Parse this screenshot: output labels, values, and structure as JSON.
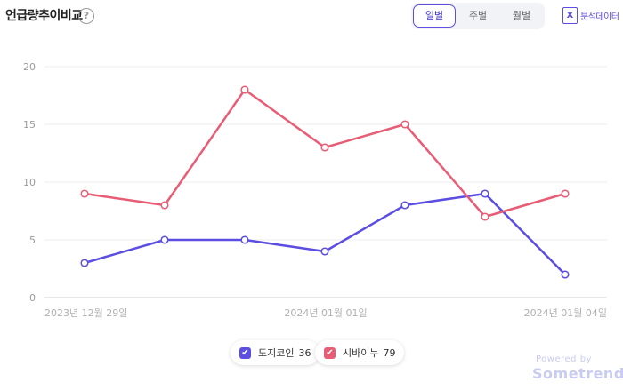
{
  "header": {
    "title": "언급량추이비교",
    "help_icon": "?",
    "tabs": [
      "일별",
      "주별",
      "월별"
    ],
    "active_tab": "일별",
    "export_label": "분석데이터",
    "export_icon": "X"
  },
  "chart_data": {
    "type": "line",
    "x": [
      "2023-12-29",
      "2023-12-30",
      "2023-12-31",
      "2024-01-01",
      "2024-01-02",
      "2024-01-03",
      "2024-01-04"
    ],
    "x_tick_labels": [
      "2023년 12월 29일",
      "2024년 01월 01일",
      "2024년 01월 04일"
    ],
    "y_ticks": [
      "0",
      "5",
      "10",
      "15",
      "20"
    ],
    "ylim": [
      0,
      20
    ],
    "grid": true,
    "legend_position": "bottom-center",
    "series": [
      {
        "name": "도지코인",
        "total": "36",
        "color": "#5b4ee0",
        "values": [
          3,
          5,
          5,
          4,
          8,
          9,
          2
        ]
      },
      {
        "name": "시바이누",
        "total": "79",
        "color": "#e85d75",
        "values": [
          9,
          8,
          18,
          13,
          15,
          7,
          9
        ]
      }
    ]
  },
  "footer": {
    "powered_by": "Powered by",
    "brand": "Sometrend"
  }
}
